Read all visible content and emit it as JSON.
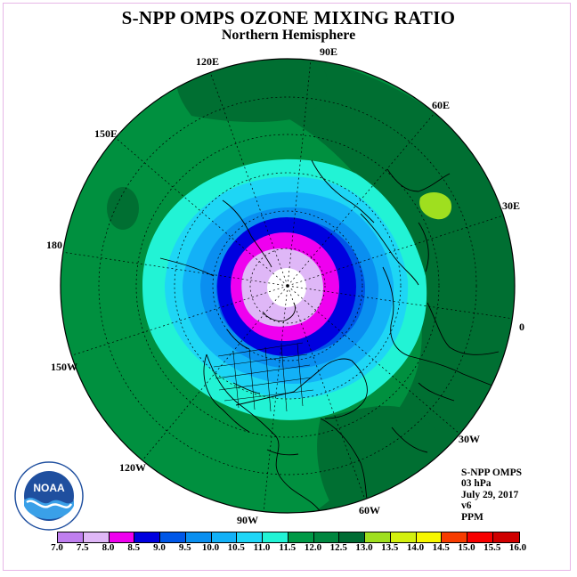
{
  "title": "S-NPP OMPS OZONE MIXING RATIO",
  "subtitle": "Northern Hemisphere",
  "map_labels": {
    "lon_90e": "90E",
    "lon_60e": "60E",
    "lon_30e": "30E",
    "lon_0": "0",
    "lon_30w": "30W",
    "lon_60w": "60W",
    "lon_90w": "90W",
    "lon_120w": "120W",
    "lon_150w": "150W",
    "lon_180": "180",
    "lon_150e": "150E",
    "lon_120e": "120E"
  },
  "info": {
    "instrument": "S-NPP OMPS",
    "level": "03 hPa",
    "date": "July 29, 2017",
    "version": "v6",
    "units": "PPM"
  },
  "colorbar": {
    "colors": [
      "#bf7fef",
      "#dfb7f7",
      "#ef00ef",
      "#0000df",
      "#0057e7",
      "#0a8ff0",
      "#13b1f7",
      "#1fd6f7",
      "#22f3d5",
      "#009946",
      "#00863f",
      "#006c33",
      "#9fdf1f",
      "#d3f00f",
      "#f7f700",
      "#f7d300",
      "#f7ae00",
      "#f77800",
      "#f73c00",
      "#f70000",
      "#cf0000",
      "#8b5a3c"
    ],
    "ticks": [
      "7.0",
      "7.5",
      "8.0",
      "8.5",
      "9.0",
      "9.5",
      "10.0",
      "10.5",
      "11.0",
      "11.5",
      "12.0",
      "12.5",
      "13.0",
      "13.5",
      "14.0",
      "14.5",
      "15.0",
      "15.5",
      "16.0"
    ]
  },
  "logo_text": "NOAA",
  "colors": {
    "band_11_11_5": "#00903f",
    "band_11_5_12": "#006f32",
    "band_10_5_11": "#22f3d5",
    "band_10_10_5": "#1ed6f5",
    "band_9_5_10": "#13b1f7",
    "band_9_9_5": "#0a8ff0",
    "band_8_5_9": "#0057e7",
    "band_8_8_5": "#0000df",
    "band_7_5_8": "#ef00ef",
    "band_7_7_5": "#dfb7f7",
    "band_12_12_5": "#9fdf1f"
  }
}
